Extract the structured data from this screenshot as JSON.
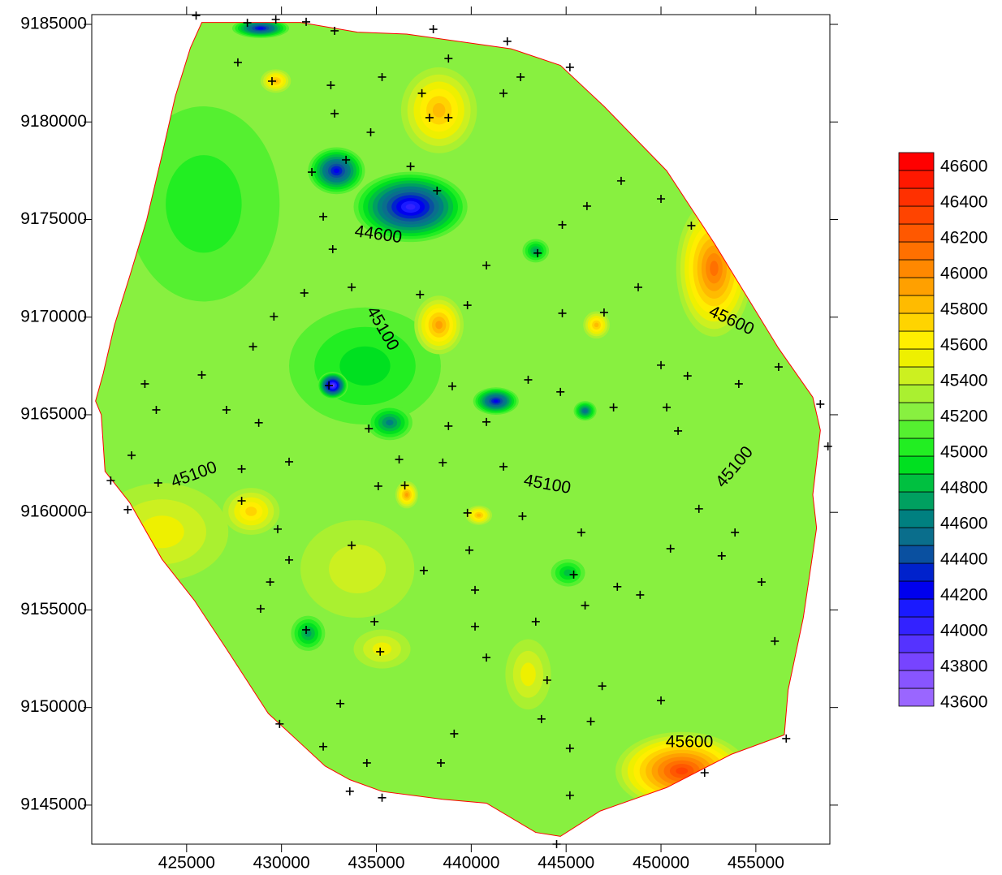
{
  "chart_data": {
    "type": "contour",
    "xlim": [
      420000,
      458900
    ],
    "ylim": [
      9143000,
      9185500
    ],
    "xticks": [
      425000,
      430000,
      435000,
      440000,
      445000,
      450000,
      455000
    ],
    "yticks": [
      9145000,
      9150000,
      9155000,
      9160000,
      9165000,
      9170000,
      9175000,
      9180000,
      9185000
    ],
    "grid": false,
    "boundary_color": "#ff0000",
    "boundary": {
      "x": [
        425800,
        431000,
        434000,
        436600,
        442100,
        444700,
        447000,
        450300,
        452800,
        456200,
        458000,
        458400,
        458000,
        458200,
        457500,
        456700,
        456500,
        453700,
        450300,
        446800,
        444700,
        443400,
        440800,
        438500,
        435300,
        433600,
        432300,
        429300,
        427100,
        425400,
        423700,
        422000,
        420700,
        420500,
        420200,
        420600,
        421200,
        422000,
        422900,
        423700,
        424400,
        425200
      ],
      "y": [
        9185100,
        9185100,
        9184600,
        9184500,
        9183750,
        9182900,
        9180800,
        9177500,
        9173800,
        9168400,
        9165900,
        9164200,
        9160900,
        9159200,
        9154600,
        9150900,
        9148600,
        9147600,
        9145900,
        9144700,
        9143400,
        9143600,
        9145100,
        9145300,
        9145700,
        9146300,
        9147000,
        9149700,
        9153000,
        9155500,
        9157600,
        9160500,
        9162100,
        9165000,
        9165700,
        9167100,
        9169600,
        9172100,
        9175000,
        9178300,
        9181300,
        9183800
      ]
    },
    "base_value": 45200,
    "anomalies": [
      {
        "x": 425900,
        "y": 9175800,
        "value": 45000,
        "rx": 4000,
        "ry": 5000
      },
      {
        "x": 434400,
        "y": 9167500,
        "value": 44900,
        "rx": 4000,
        "ry": 3000
      },
      {
        "x": 423700,
        "y": 9159000,
        "value": 45500,
        "rx": 3500,
        "ry": 2500
      },
      {
        "x": 434000,
        "y": 9157100,
        "value": 45400,
        "rx": 3000,
        "ry": 2500
      },
      {
        "x": 452800,
        "y": 9172500,
        "value": 46100,
        "rx": 2000,
        "ry": 3500
      },
      {
        "x": 451100,
        "y": 9146750,
        "value": 46300,
        "rx": 3500,
        "ry": 2000
      },
      {
        "x": 436800,
        "y": 9175650,
        "value": 44000,
        "rx": 3000,
        "ry": 1800
      },
      {
        "x": 438300,
        "y": 9180600,
        "value": 45800,
        "rx": 2000,
        "ry": 2200
      },
      {
        "x": 438300,
        "y": 9169600,
        "value": 45900,
        "rx": 1300,
        "ry": 1500
      },
      {
        "x": 428400,
        "y": 9160050,
        "value": 45700,
        "rx": 1500,
        "ry": 1200
      },
      {
        "x": 435300,
        "y": 9153000,
        "value": 45500,
        "rx": 1500,
        "ry": 1000
      },
      {
        "x": 443000,
        "y": 9151700,
        "value": 45500,
        "rx": 1200,
        "ry": 1800
      },
      {
        "x": 432900,
        "y": 9177500,
        "value": 44200,
        "rx": 1500,
        "ry": 1200
      },
      {
        "x": 435700,
        "y": 9164600,
        "value": 44600,
        "rx": 1200,
        "ry": 900
      },
      {
        "x": 432700,
        "y": 9166500,
        "value": 43800,
        "rx": 800,
        "ry": 700
      },
      {
        "x": 441300,
        "y": 9165700,
        "value": 44200,
        "rx": 1200,
        "ry": 700
      },
      {
        "x": 428900,
        "y": 9184800,
        "value": 44200,
        "rx": 1500,
        "ry": 500
      },
      {
        "x": 436600,
        "y": 9160900,
        "value": 45900,
        "rx": 600,
        "ry": 700
      },
      {
        "x": 440400,
        "y": 9159850,
        "value": 45800,
        "rx": 700,
        "ry": 500
      },
      {
        "x": 446600,
        "y": 9169600,
        "value": 45800,
        "rx": 700,
        "ry": 700
      },
      {
        "x": 429700,
        "y": 9182100,
        "value": 45800,
        "rx": 800,
        "ry": 600
      },
      {
        "x": 431400,
        "y": 9153800,
        "value": 44700,
        "rx": 900,
        "ry": 900
      },
      {
        "x": 443400,
        "y": 9173400,
        "value": 44700,
        "rx": 700,
        "ry": 600
      },
      {
        "x": 445100,
        "y": 9156900,
        "value": 44800,
        "rx": 900,
        "ry": 700
      },
      {
        "x": 446000,
        "y": 9165200,
        "value": 44500,
        "rx": 600,
        "ry": 500
      }
    ],
    "contour_labels": [
      {
        "text": "44600",
        "x": 435100,
        "y": 9174200
      },
      {
        "text": "45100",
        "x": 435300,
        "y": 9169400
      },
      {
        "text": "45100",
        "x": 425400,
        "y": 9161900
      },
      {
        "text": "45100",
        "x": 444000,
        "y": 9161400
      },
      {
        "text": "45100",
        "x": 453900,
        "y": 9162300
      },
      {
        "text": "45600",
        "x": 453700,
        "y": 9169800
      },
      {
        "text": "45600",
        "x": 451500,
        "y": 9148200
      }
    ],
    "points": {
      "x": [
        425500,
        428200,
        429700,
        431300,
        432800,
        438000,
        441900,
        445200,
        427700,
        429500,
        432600,
        435300,
        437400,
        438800,
        437800,
        438800,
        441700,
        442600,
        432800,
        434700,
        431600,
        433400,
        436800,
        438200,
        432200,
        432700,
        440800,
        443500,
        444800,
        446100,
        447900,
        450000,
        451600,
        448800,
        431200,
        433700,
        437300,
        439800,
        444800,
        447000,
        429600,
        428500,
        425800,
        422800,
        432500,
        439000,
        443000,
        444700,
        450000,
        451400,
        454100,
        456200,
        458400,
        423400,
        427100,
        428800,
        434600,
        438800,
        440800,
        447500,
        450300,
        450900,
        422100,
        427900,
        430400,
        436200,
        438500,
        441700,
        421000,
        423500,
        427900,
        429800,
        435100,
        436500,
        439800,
        442700,
        445800,
        452000,
        453900,
        421900,
        430400,
        433700,
        437500,
        439900,
        445400,
        450500,
        453200,
        429400,
        440200,
        447700,
        455300,
        428900,
        431300,
        434900,
        440200,
        443400,
        446000,
        448900,
        435200,
        440800,
        444000,
        446900,
        450000,
        433100,
        429900,
        439100,
        443700,
        446300,
        432200,
        434500,
        438400,
        445200,
        452300,
        456600,
        433600,
        435300,
        445200,
        444500,
        456000,
        458800
      ],
      "y": [
        9185450,
        9185080,
        9185250,
        9185130,
        9184670,
        9184750,
        9184130,
        9182800,
        9183050,
        9182090,
        9181880,
        9182300,
        9181470,
        9183250,
        9180220,
        9180220,
        9181470,
        9182300,
        9180430,
        9179470,
        9177430,
        9178060,
        9177720,
        9176480,
        9175150,
        9173480,
        9172650,
        9173280,
        9174730,
        9175690,
        9176980,
        9176060,
        9174690,
        9171530,
        9171240,
        9171530,
        9171160,
        9170610,
        9170200,
        9170240,
        9170030,
        9168490,
        9167040,
        9166580,
        9166500,
        9166460,
        9166790,
        9166170,
        9167540,
        9166990,
        9166580,
        9167450,
        9165540,
        9165250,
        9165250,
        9164590,
        9164290,
        9164420,
        9164630,
        9165380,
        9165380,
        9164170,
        9162920,
        9162220,
        9162590,
        9162710,
        9162550,
        9162340,
        9161630,
        9161510,
        9160590,
        9159140,
        9161340,
        9161380,
        9159970,
        9159800,
        9158970,
        9160180,
        9158970,
        9160140,
        9157560,
        9158310,
        9157020,
        9158060,
        9156810,
        9158140,
        9157770,
        9156430,
        9156020,
        9156190,
        9156430,
        9155060,
        9153980,
        9154400,
        9154150,
        9154400,
        9155230,
        9155770,
        9152860,
        9152560,
        9151400,
        9151100,
        9150360,
        9150200,
        9149160,
        9148660,
        9149410,
        9149290,
        9148000,
        9147160,
        9147160,
        9147910,
        9146660,
        9148410,
        9145710,
        9145380,
        9145500,
        9143000,
        9153400,
        9163380
      ]
    },
    "colorbar": {
      "lim": [
        43600,
        46700
      ],
      "ticks": [
        43600,
        43800,
        44000,
        44200,
        44400,
        44600,
        44800,
        45000,
        45200,
        45400,
        45600,
        45800,
        46000,
        46200,
        46400,
        46600
      ],
      "colors": [
        "#9a66ff",
        "#8855ff",
        "#7744ff",
        "#5533ff",
        "#3322ff",
        "#1a1aff",
        "#0000ee",
        "#0022cc",
        "#0a50a0",
        "#0a6e8c",
        "#008080",
        "#00a060",
        "#00c040",
        "#00e020",
        "#22ee22",
        "#55f030",
        "#88f040",
        "#aaf030",
        "#ccf020",
        "#eef000",
        "#ffee00",
        "#ffd400",
        "#ffbb00",
        "#ffa000",
        "#ff8800",
        "#ff7000",
        "#ff5800",
        "#ff4400",
        "#ff3000",
        "#ff1800",
        "#ff0000"
      ]
    }
  }
}
